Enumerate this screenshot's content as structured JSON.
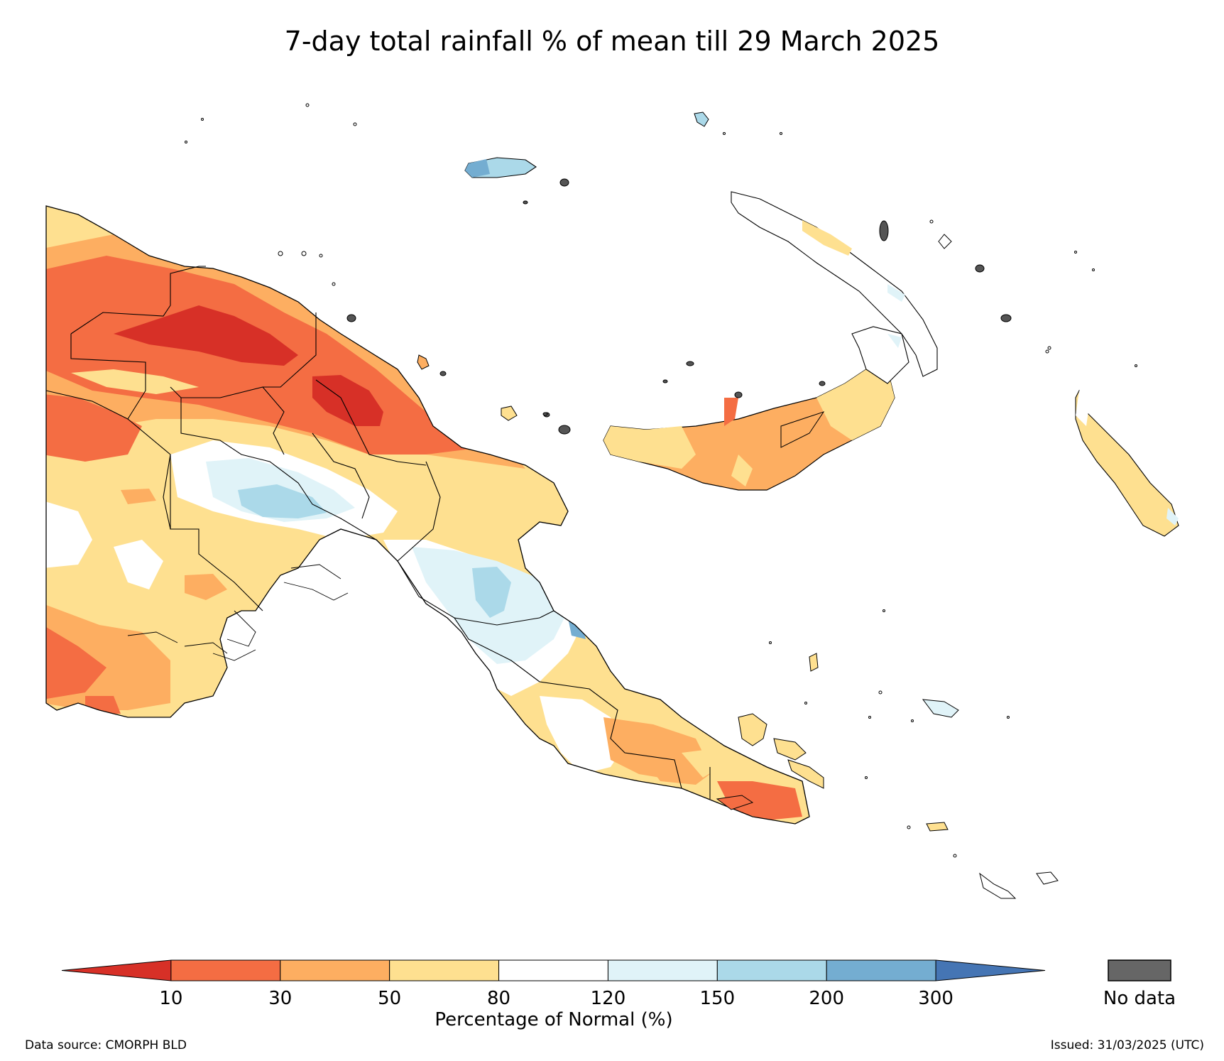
{
  "title": "7-day total rainfall % of mean till 29 March 2025",
  "legend": {
    "label": "Percentage of Normal (%)",
    "ticks": [
      "10",
      "30",
      "50",
      "80",
      "120",
      "150",
      "200",
      "300"
    ],
    "bins": [
      {
        "range": "<10",
        "color": "#d73027"
      },
      {
        "range": "10-30",
        "color": "#f46d43"
      },
      {
        "range": "30-50",
        "color": "#fdae61"
      },
      {
        "range": "50-80",
        "color": "#fee090"
      },
      {
        "range": "80-120",
        "color": "#ffffff"
      },
      {
        "range": "120-150",
        "color": "#e0f3f8"
      },
      {
        "range": "150-200",
        "color": "#abd9e9"
      },
      {
        "range": "200-300",
        "color": "#74add1"
      },
      {
        "range": ">300",
        "color": "#4575b4"
      }
    ],
    "nodata_label": "No data",
    "nodata_color": "#666666"
  },
  "footer": {
    "source": "Data source: CMORPH BLD",
    "issued": "Issued: 31/03/2025 (UTC)"
  }
}
